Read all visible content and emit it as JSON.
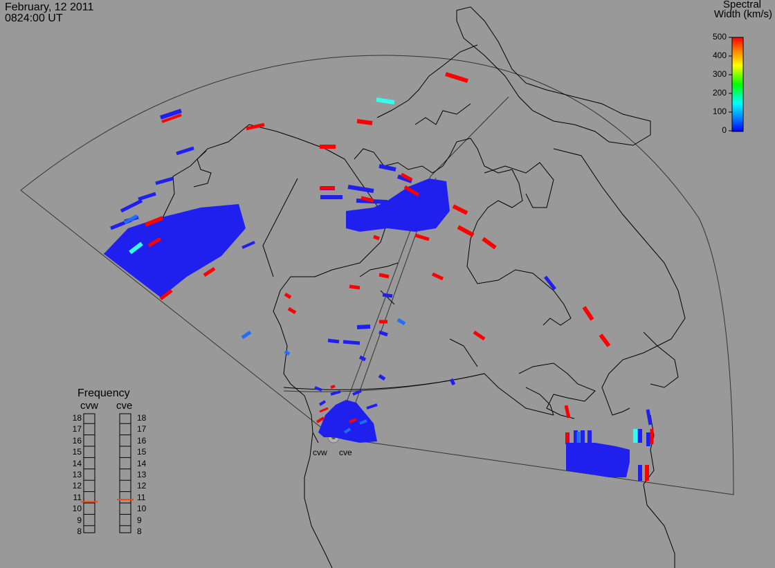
{
  "header": {
    "date": "February, 12 2011",
    "time": "0824:00 UT"
  },
  "colorbar": {
    "title_line1": "Spectral",
    "title_line2": "Width (km/s)",
    "ticks": [
      "500",
      "400",
      "300",
      "200",
      "100",
      "0"
    ],
    "min": 0,
    "max": 500,
    "gradient": [
      "#0000ff",
      "#0088ff",
      "#00ffff",
      "#00ff00",
      "#ffff00",
      "#ff8800",
      "#ff0000"
    ]
  },
  "radars": {
    "west_label": "cvw",
    "east_label": "cve"
  },
  "frequency": {
    "title": "Frequency",
    "col_west": "cvw",
    "col_east": "cve",
    "levels": [
      "18",
      "17",
      "16",
      "15",
      "14",
      "13",
      "12",
      "11",
      "10",
      "9",
      "8"
    ],
    "cvw_value": 10.6,
    "cve_value": 10.8,
    "marker_color": "#ff4400"
  },
  "colors": {
    "background": "#999999",
    "coast": "#000000",
    "fov": "#333333",
    "low": "#2020ee",
    "mid": "#1f6fff",
    "cyan": "#33ffee",
    "high": "#ff0000"
  }
}
